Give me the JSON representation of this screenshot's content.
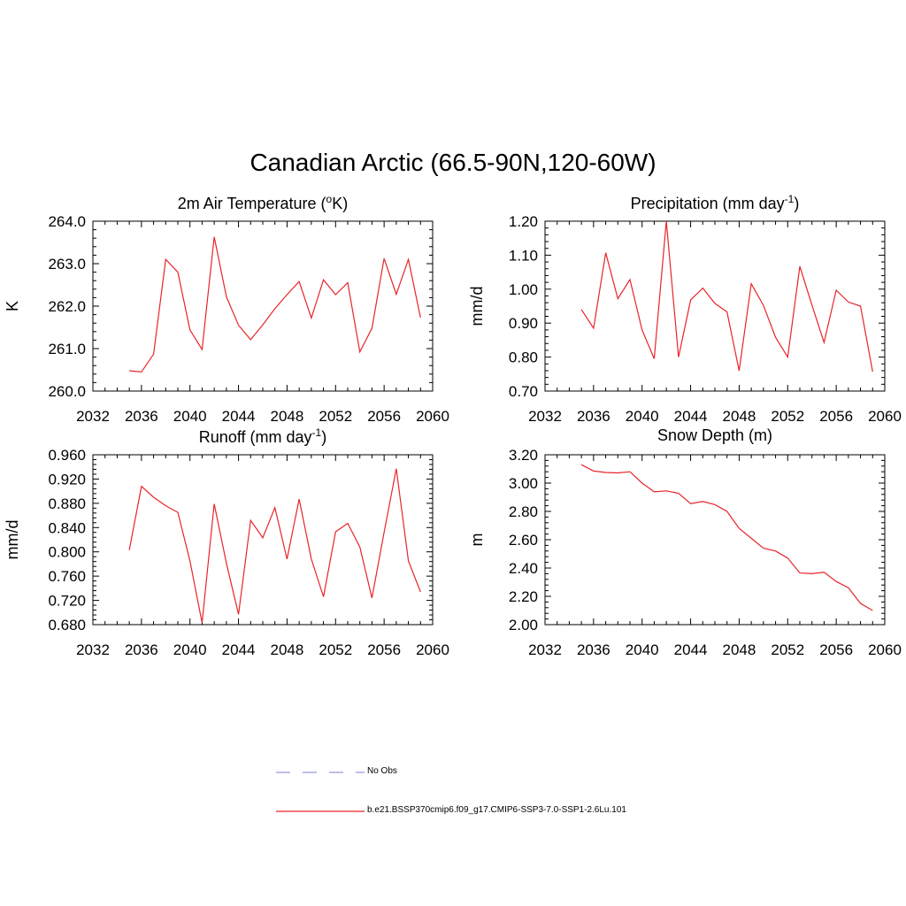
{
  "figure": {
    "title": "Canadian Arctic (66.5-90N,120-60W)"
  },
  "legend": {
    "items": [
      {
        "label": "No Obs",
        "color": "#9999dd",
        "style": "dashed"
      },
      {
        "label": "b.e21.BSSP370cmip6.f09_g17.CMIP6-SSP3-7.0-SSP1-2.6Lu.101",
        "color": "#e8242a",
        "style": "solid"
      }
    ]
  },
  "chart_data": [
    {
      "type": "line",
      "title": "2m Air Temperature (°K)",
      "ylabel": "K",
      "xlim": [
        2032,
        2060
      ],
      "ylim": [
        260.0,
        264.0
      ],
      "xticks": [
        "2032",
        "2036",
        "2040",
        "2044",
        "2048",
        "2052",
        "2056",
        "2060"
      ],
      "yticks": [
        "260.0",
        "261.0",
        "262.0",
        "263.0",
        "264.0"
      ],
      "series": [
        {
          "color": "#e8242a",
          "x": [
            2035,
            2036,
            2037,
            2038,
            2039,
            2040,
            2041,
            2042,
            2043,
            2044,
            2045,
            2046,
            2047,
            2048,
            2049,
            2050,
            2051,
            2052,
            2053,
            2054,
            2055,
            2056,
            2057,
            2058,
            2059
          ],
          "values": [
            260.48,
            260.45,
            260.87,
            263.1,
            262.8,
            261.44,
            260.98,
            263.63,
            262.22,
            261.55,
            261.21,
            261.56,
            261.94,
            262.27,
            262.58,
            261.72,
            262.62,
            262.27,
            262.55,
            260.92,
            261.48,
            263.12,
            262.28,
            263.1,
            261.73
          ]
        }
      ]
    },
    {
      "type": "line",
      "title": "Precipitation (mm day-1)",
      "ylabel": "mm/d",
      "xlim": [
        2032,
        2060
      ],
      "ylim": [
        0.7,
        1.2
      ],
      "xticks": [
        "2032",
        "2036",
        "2040",
        "2044",
        "2048",
        "2052",
        "2056",
        "2060"
      ],
      "yticks": [
        "0.70",
        "0.80",
        "0.90",
        "1.00",
        "1.10",
        "1.20"
      ],
      "series": [
        {
          "color": "#e8242a",
          "x": [
            2035,
            2036,
            2037,
            2038,
            2039,
            2040,
            2041,
            2042,
            2043,
            2044,
            2045,
            2046,
            2047,
            2048,
            2049,
            2050,
            2051,
            2052,
            2053,
            2054,
            2055,
            2056,
            2057,
            2058,
            2059
          ],
          "values": [
            0.94,
            0.885,
            1.107,
            0.972,
            1.028,
            0.88,
            0.795,
            1.2,
            0.8,
            0.968,
            1.003,
            0.958,
            0.933,
            0.76,
            1.016,
            0.952,
            0.858,
            0.8,
            1.067,
            0.953,
            0.843,
            0.997,
            0.962,
            0.95,
            0.757
          ]
        }
      ]
    },
    {
      "type": "line",
      "title": "Runoff (mm day-1)",
      "ylabel": "mm/d",
      "xlim": [
        2032,
        2060
      ],
      "ylim": [
        0.68,
        0.96
      ],
      "xticks": [
        "2032",
        "2036",
        "2040",
        "2044",
        "2048",
        "2052",
        "2056",
        "2060"
      ],
      "yticks": [
        "0.680",
        "0.720",
        "0.760",
        "0.800",
        "0.840",
        "0.880",
        "0.920",
        "0.960"
      ],
      "series": [
        {
          "color": "#e8242a",
          "x": [
            2035,
            2036,
            2037,
            2038,
            2039,
            2040,
            2041,
            2042,
            2043,
            2044,
            2045,
            2046,
            2047,
            2048,
            2049,
            2050,
            2051,
            2052,
            2053,
            2054,
            2055,
            2056,
            2057,
            2058,
            2059
          ],
          "values": [
            0.803,
            0.908,
            0.89,
            0.876,
            0.865,
            0.785,
            0.683,
            0.879,
            0.781,
            0.697,
            0.852,
            0.823,
            0.873,
            0.788,
            0.887,
            0.788,
            0.726,
            0.833,
            0.847,
            0.808,
            0.724,
            0.832,
            0.937,
            0.785,
            0.734
          ]
        }
      ]
    },
    {
      "type": "line",
      "title": "Snow Depth (m)",
      "ylabel": "m",
      "xlim": [
        2032,
        2060
      ],
      "ylim": [
        2.0,
        3.2
      ],
      "xticks": [
        "2032",
        "2036",
        "2040",
        "2044",
        "2048",
        "2052",
        "2056",
        "2060"
      ],
      "yticks": [
        "2.00",
        "2.20",
        "2.40",
        "2.60",
        "2.80",
        "3.00",
        "3.20"
      ],
      "series": [
        {
          "color": "#e8242a",
          "x": [
            2035,
            2036,
            2037,
            2038,
            2039,
            2040,
            2041,
            2042,
            2043,
            2044,
            2045,
            2046,
            2047,
            2048,
            2049,
            2050,
            2051,
            2052,
            2053,
            2054,
            2055,
            2056,
            2057,
            2058,
            2059
          ],
          "values": [
            3.13,
            3.085,
            3.075,
            3.072,
            3.08,
            3.0,
            2.938,
            2.945,
            2.928,
            2.855,
            2.87,
            2.848,
            2.8,
            2.68,
            2.61,
            2.54,
            2.52,
            2.47,
            2.365,
            2.36,
            2.37,
            2.305,
            2.26,
            2.15,
            2.1
          ]
        }
      ]
    }
  ]
}
